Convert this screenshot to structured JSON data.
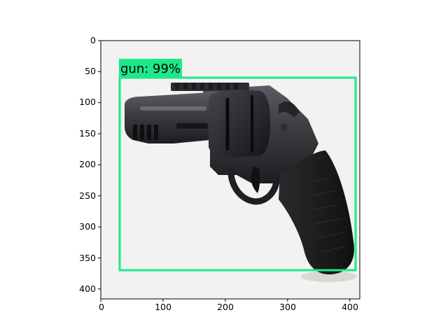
{
  "image": {
    "subject": "revolver",
    "background": "#f3f2f0"
  },
  "axes": {
    "x_ticks": [
      "0",
      "100",
      "200",
      "300",
      "400"
    ],
    "y_ticks": [
      "0",
      "50",
      "100",
      "150",
      "200",
      "250",
      "300",
      "350",
      "400"
    ],
    "x_range": [
      0,
      416
    ],
    "y_range": [
      416,
      0
    ]
  },
  "detection": {
    "label": "gun: 99%",
    "class": "gun",
    "confidence": 99,
    "box_color": "#1ee88a"
  }
}
